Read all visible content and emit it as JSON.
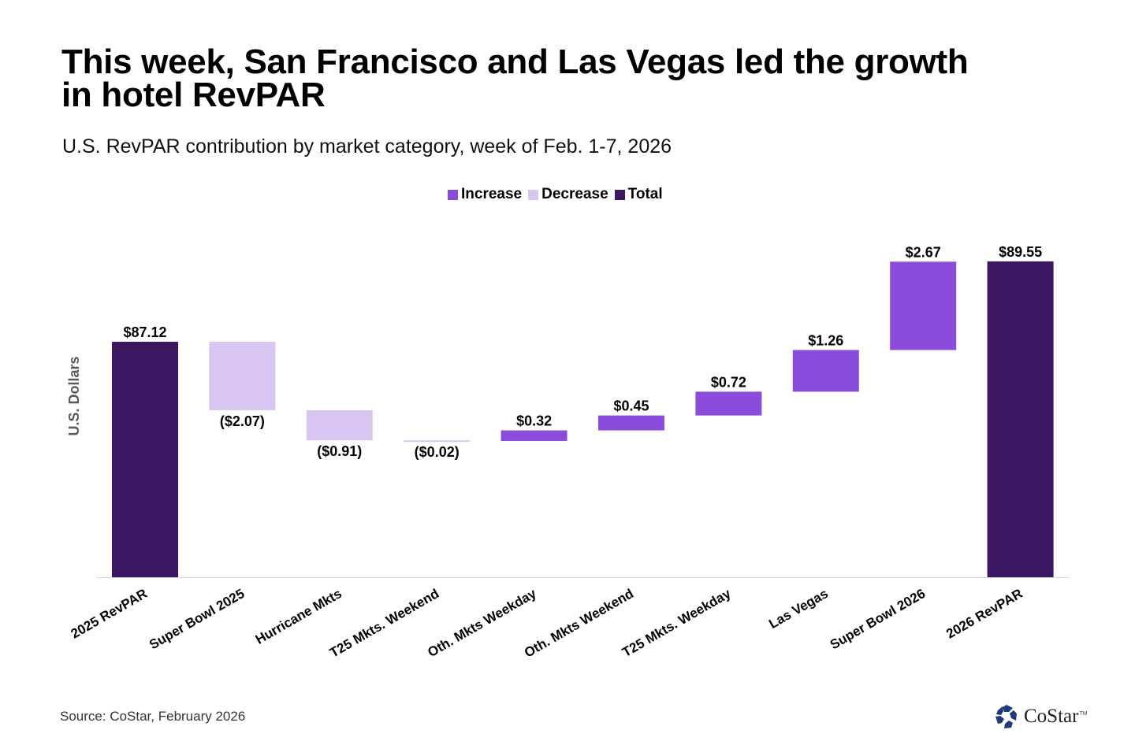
{
  "title": "This week, San Francisco and Las Vegas led the growth in hotel RevPAR",
  "subtitle": "U.S. RevPAR contribution by market category, week of Feb. 1-7, 2026",
  "source": "Source: CoStar, February 2026",
  "logo": "CoStar",
  "colors": {
    "increase": "#8b4bdb",
    "decrease": "#d9c5f1",
    "total": "#3c1661"
  },
  "chart_data": {
    "type": "waterfall",
    "title": "U.S. RevPAR contribution by market category, week of Feb. 1-7, 2026",
    "ylabel": "U.S. Dollars",
    "ylim": [
      80,
      91
    ],
    "legend": [
      "Increase",
      "Decrease",
      "Total"
    ],
    "legend_position": "top-center",
    "categories": [
      "2025 RevPAR",
      "Super Bowl 2025",
      "Hurricane Mkts",
      "T25 Mkts. Weekend",
      "Oth. Mkts Weekday",
      "Oth. Mkts Weekend",
      "T25 Mkts. Weekday",
      "Las Vegas",
      "Super Bowl  2026",
      "2026 RevPAR"
    ],
    "values": [
      87.12,
      -2.07,
      -0.91,
      -0.02,
      0.32,
      0.45,
      0.72,
      1.26,
      2.67,
      89.55
    ],
    "kinds": [
      "total",
      "decrease",
      "decrease",
      "decrease",
      "increase",
      "increase",
      "increase",
      "increase",
      "increase",
      "total"
    ],
    "labels": [
      "$87.12",
      "($2.07)",
      "($0.91)",
      "($0.02)",
      "$0.32",
      "$0.45",
      "$0.72",
      "$1.26",
      "$2.67",
      "$89.55"
    ]
  }
}
